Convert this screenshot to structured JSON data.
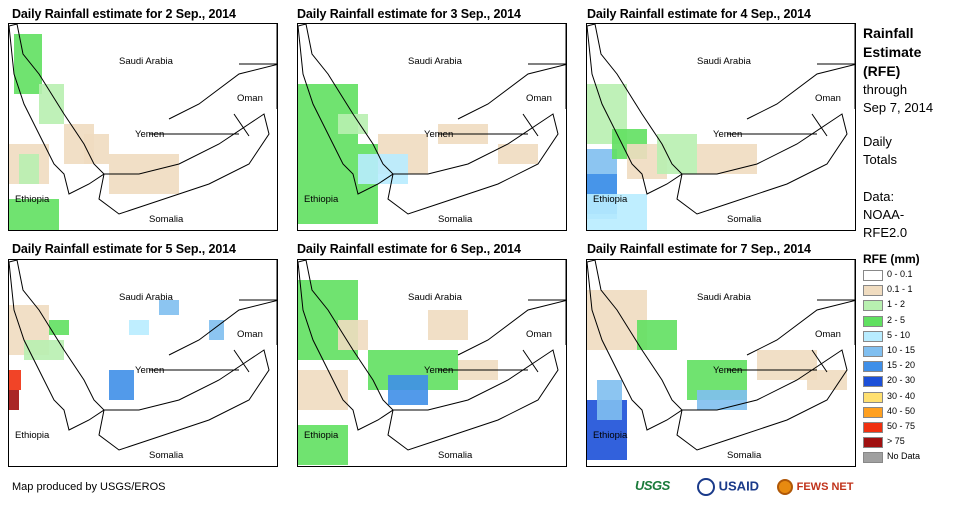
{
  "panels": [
    {
      "title": "Daily Rainfall estimate for 2 Sep., 2014"
    },
    {
      "title": "Daily Rainfall estimate for 3 Sep., 2014"
    },
    {
      "title": "Daily Rainfall estimate for 4 Sep., 2014"
    },
    {
      "title": "Daily Rainfall estimate for 5 Sep., 2014"
    },
    {
      "title": "Daily Rainfall estimate for 6 Sep., 2014"
    },
    {
      "title": "Daily Rainfall estimate for 7 Sep., 2014"
    }
  ],
  "place_labels": {
    "saudi": "Saudi Arabia",
    "oman": "Oman",
    "yemen": "Yemen",
    "ethiopia": "Ethiopia",
    "somalia": "Somalia"
  },
  "sidebar": {
    "title_line1": "Rainfall",
    "title_line2": "Estimate",
    "title_line3": "(RFE)",
    "through": "through",
    "date": "Sep 7, 2014",
    "daily1": "Daily",
    "daily2": "Totals",
    "data1": "Data:",
    "data2": "NOAA-",
    "data3": "RFE2.0"
  },
  "legend": {
    "title": "RFE (mm)",
    "items": [
      {
        "label": "0 - 0.1",
        "color": "#ffffff"
      },
      {
        "label": "0.1 - 1",
        "color": "#f0dcc0"
      },
      {
        "label": "1 - 2",
        "color": "#b8f0b0"
      },
      {
        "label": "2 - 5",
        "color": "#60e060"
      },
      {
        "label": "5 - 10",
        "color": "#b8ecff"
      },
      {
        "label": "10 - 15",
        "color": "#80bff0"
      },
      {
        "label": "15 - 20",
        "color": "#3f8fe8"
      },
      {
        "label": "20 - 30",
        "color": "#1c50d8"
      },
      {
        "label": "30 - 40",
        "color": "#ffe070"
      },
      {
        "label": "40 - 50",
        "color": "#ffa020"
      },
      {
        "label": "50 - 75",
        "color": "#f03010"
      },
      {
        "label": "> 75",
        "color": "#a01010"
      },
      {
        "label": "No Data",
        "color": "#a0a0a0"
      }
    ]
  },
  "footer": {
    "credit": "Map produced by USGS/EROS"
  },
  "logos": {
    "usgs": "USGS",
    "usaid": "USAID",
    "fewsnet": "FEWS NET"
  }
}
